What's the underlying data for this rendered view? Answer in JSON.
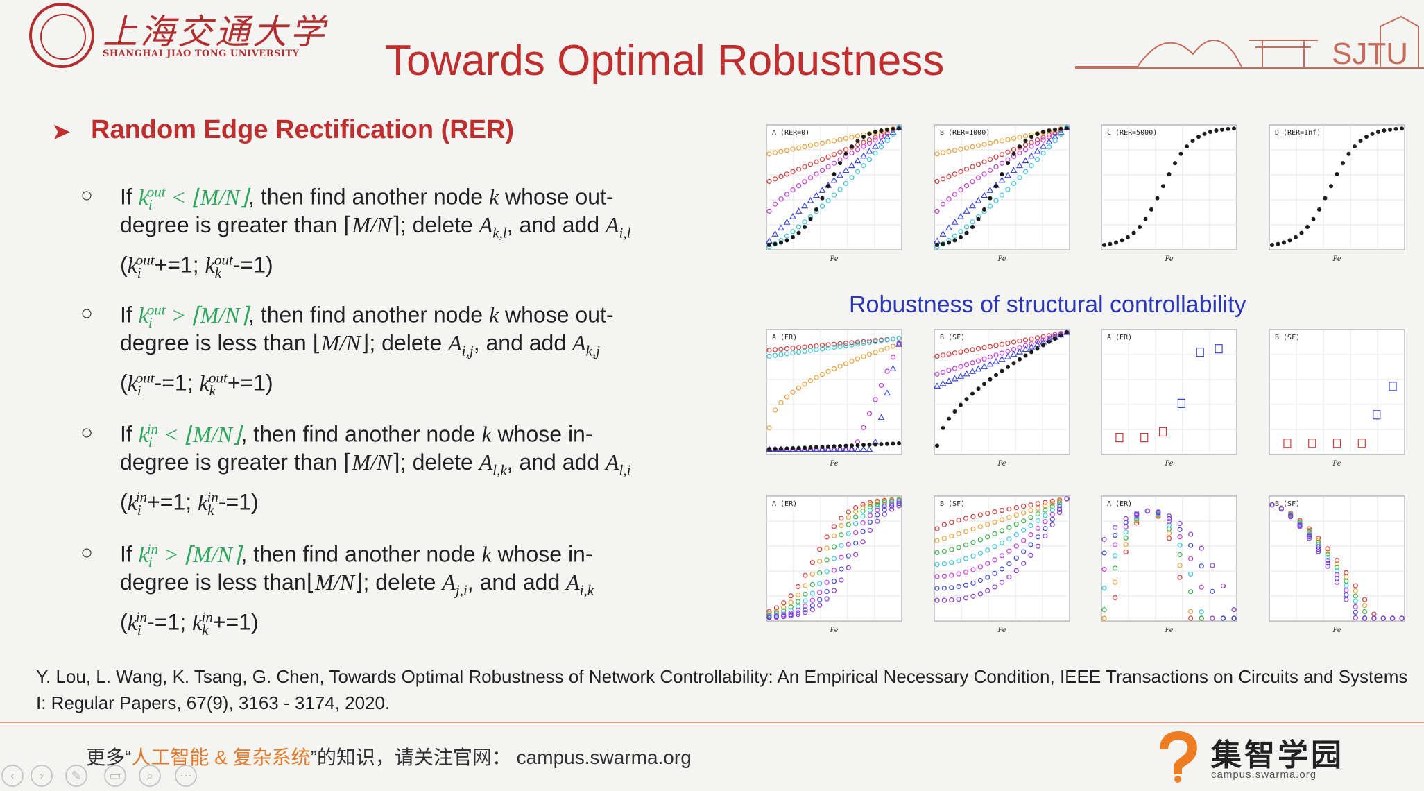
{
  "header": {
    "university_cn": "上海交通大学",
    "university_en": "SHANGHAI JIAO TONG UNIVERSITY",
    "title": "Towards Optimal Robustness",
    "sjtu_mark": "SJTU"
  },
  "section": {
    "heading": "Random Edge Rectification (RER)",
    "bullet_marker": "○"
  },
  "rules": [
    {
      "line1_rest": ", then find another node ",
      "line1_tail": " whose out-",
      "line2_a": "degree is greater than ⌈",
      "line2_b": "⌉;  delete ",
      "line2_c": ", and add ",
      "line3_a": "+=1; ",
      "line3_b": "-=1)"
    },
    {
      "line1_rest": ", then find another node ",
      "line1_tail": " whose out-",
      "line2_a": "degree is less than ⌊",
      "line2_b": "⌋;  delete ",
      "line2_c": ", and add ",
      "line3_a": "-=1; ",
      "line3_b": "+=1)"
    },
    {
      "line1_rest": ", then find another node ",
      "line1_tail": " whose in-",
      "line2_a": "degree is greater than ⌈",
      "line2_b": "⌉;  delete ",
      "line2_c": ", and add ",
      "line3_a": "+=1; ",
      "line3_b": "-=1)"
    },
    {
      "line1_rest": ", then find another node ",
      "line1_tail": " whose in-",
      "line2_a": "degree is less than⌊",
      "line2_b": "⌋;  delete ",
      "line2_c": ", and add ",
      "line3_a": "-=1; ",
      "line3_b": "+=1)"
    }
  ],
  "figures": {
    "caption": "Robustness of structural controllability",
    "top_row_titles": [
      "A  (RER=0)",
      "B  (RER=1000)",
      "C  (RER=5000)",
      "D  (RER=Inf)"
    ],
    "mid_row_titles": [
      "A  (ER)",
      "B  (SF)",
      "A  (ER)",
      "B  (SF)"
    ],
    "bottom_row_titles": [
      "A  (ER)",
      "B  (SF)",
      "A  (ER)",
      "B  (SF)"
    ],
    "axis_label": "Pe",
    "colors": {
      "red": "#d23b3b",
      "cyan": "#39c6d8",
      "orange": "#e8a13a",
      "magenta": "#c63bd6",
      "blue": "#3b48d6",
      "black": "#1b1b1b",
      "green": "#3ab24a",
      "purple": "#8a3bd6"
    }
  },
  "citation": "Y. Lou, L. Wang, K. Tsang,  G. Chen, Towards Optimal Robustness of Network Controllability: An Empirical Necessary Condition,  IEEE Transactions on Circuits and Systems I: Regular Papers, 67(9),  3163 - 3174, 2020.",
  "footer": {
    "text_a": "更多“",
    "text_highlight": "人工智能 & 复杂系统",
    "text_b": "”的知识，请关注官网：  campus.swarma.org",
    "brand_name": "集智学园",
    "brand_url": "campus.swarma.org",
    "controls": [
      "‹",
      "›",
      "✎",
      "▭",
      "⌕",
      "⋯"
    ]
  }
}
